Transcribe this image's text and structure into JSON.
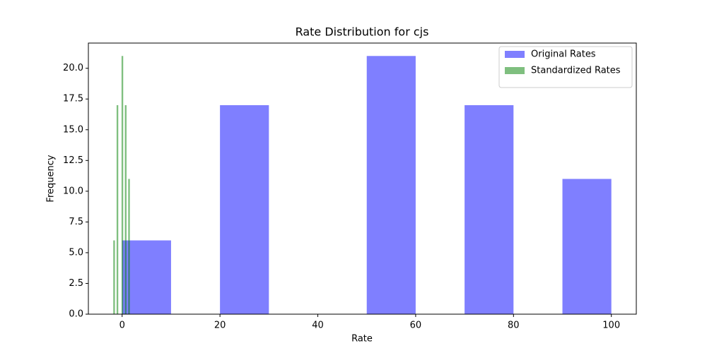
{
  "chart_data": {
    "type": "histogram",
    "title": "Rate Distribution for cjs",
    "xlabel": "Rate",
    "ylabel": "Frequency",
    "series": [
      {
        "name": "Original Rates",
        "color": "#0000ff",
        "opacity": 0.5,
        "bins": [
          0,
          10,
          20,
          30,
          40,
          50,
          60,
          70,
          80,
          90,
          100
        ],
        "values": [
          6,
          0,
          17,
          0,
          0,
          21,
          0,
          17,
          0,
          11
        ]
      },
      {
        "name": "Standardized Rates",
        "color": "#008000",
        "opacity": 0.5,
        "bins": [
          -1.81,
          -1.47,
          -1.13,
          -0.79,
          -0.46,
          -0.12,
          0.22,
          0.56,
          0.9,
          1.24,
          1.58
        ],
        "values": [
          6,
          0,
          17,
          0,
          0,
          21,
          0,
          17,
          0,
          11
        ]
      }
    ],
    "xlim": [
      -6.9,
      105.1
    ],
    "ylim": [
      0,
      22.05
    ],
    "xticks": [
      0,
      20,
      40,
      60,
      80,
      100
    ],
    "yticks": [
      {
        "value": 0,
        "label": "0.0"
      },
      {
        "value": 2.5,
        "label": "2.5"
      },
      {
        "value": 5,
        "label": "5.0"
      },
      {
        "value": 7.5,
        "label": "7.5"
      },
      {
        "value": 10,
        "label": "10.0"
      },
      {
        "value": 12.5,
        "label": "12.5"
      },
      {
        "value": 15,
        "label": "15.0"
      },
      {
        "value": 17.5,
        "label": "17.5"
      },
      {
        "value": 20,
        "label": "20.0"
      }
    ],
    "legend": "upper right",
    "grid": false
  }
}
